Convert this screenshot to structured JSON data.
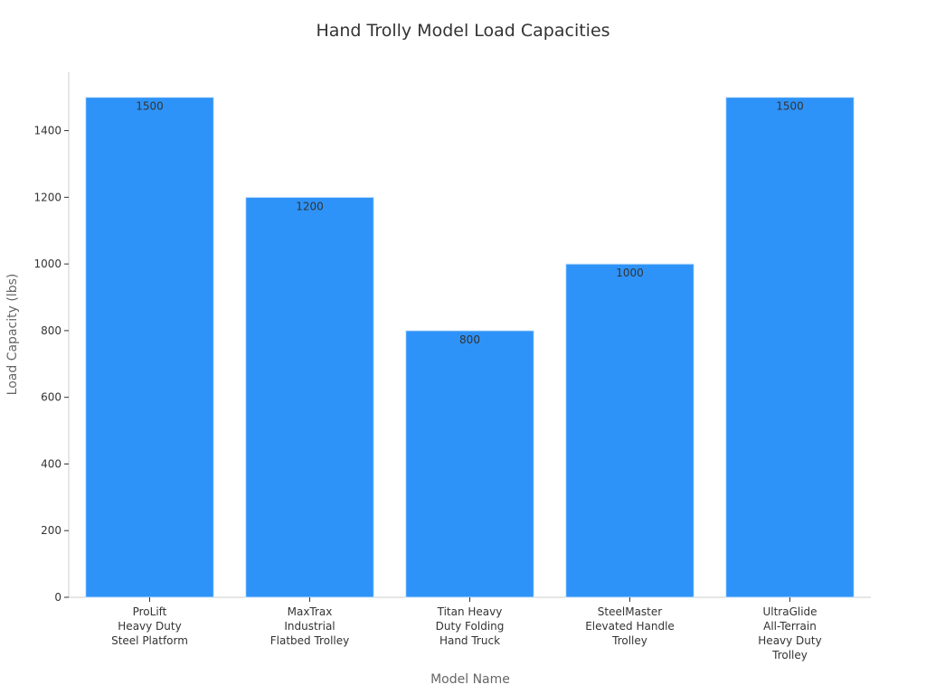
{
  "chart_data": {
    "type": "bar",
    "title": "Hand Trolly Model Load Capacities",
    "xlabel": "Model Name",
    "ylabel": "Load Capacity (lbs)",
    "categories": [
      [
        "ProLift",
        "Heavy Duty",
        "Steel Platform"
      ],
      [
        "MaxTrax",
        "Industrial",
        "Flatbed Trolley"
      ],
      [
        "Titan Heavy",
        "Duty Folding",
        "Hand Truck"
      ],
      [
        "SteelMaster",
        "Elevated Handle",
        "Trolley"
      ],
      [
        "UltraGlide",
        "All-Terrain",
        "Heavy Duty",
        "Trolley"
      ]
    ],
    "values": [
      1500,
      1200,
      800,
      1000,
      1500
    ],
    "ylim": [
      0,
      1575
    ],
    "yticks": [
      0,
      200,
      400,
      600,
      800,
      1000,
      1200,
      1400
    ],
    "grid": false,
    "data_labels": true,
    "bar_color": "#2e93f8"
  }
}
